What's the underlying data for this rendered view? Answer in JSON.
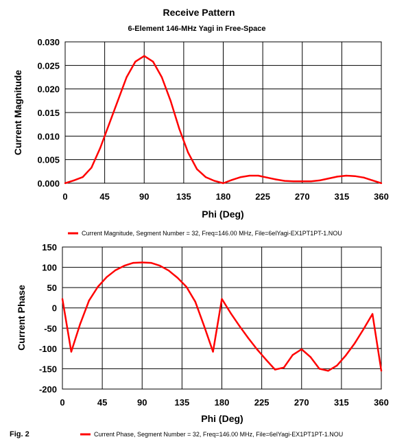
{
  "title": "Receive Pattern",
  "subtitle": "6-Element 146-MHz Yagi in Free-Space",
  "figure_label": "Fig. 2",
  "colors": {
    "series": "#ff0000",
    "grid": "#000000",
    "background": "#ffffff"
  },
  "chart_data": [
    {
      "type": "line",
      "ylabel": "Current Magnitude",
      "xlabel": "Phi (Deg)",
      "xlim": [
        0,
        360
      ],
      "ylim": [
        0,
        0.03
      ],
      "x_ticks": [
        "0",
        "45",
        "90",
        "135",
        "180",
        "225",
        "270",
        "315",
        "360"
      ],
      "y_ticks": [
        "0.000",
        "0.005",
        "0.010",
        "0.015",
        "0.020",
        "0.025",
        "0.030"
      ],
      "grid": true,
      "legend_position": "bottom",
      "series": [
        {
          "name": "Current Magnitude, Segment Number = 32, Freq=146.00 MHz, File=6elYagi-EX1PT1PT-1.NOU",
          "x": [
            0,
            10,
            20,
            30,
            40,
            50,
            60,
            70,
            80,
            90,
            100,
            110,
            120,
            130,
            140,
            150,
            160,
            170,
            180,
            190,
            200,
            210,
            220,
            230,
            240,
            250,
            260,
            270,
            280,
            290,
            300,
            310,
            320,
            330,
            340,
            350,
            360
          ],
          "values": [
            0.0,
            0.0006,
            0.0013,
            0.0033,
            0.0075,
            0.0125,
            0.0175,
            0.0225,
            0.0258,
            0.027,
            0.0258,
            0.0225,
            0.0175,
            0.0115,
            0.0065,
            0.003,
            0.0013,
            0.0005,
            0.0,
            0.0007,
            0.0013,
            0.0016,
            0.0016,
            0.0012,
            0.0008,
            0.0005,
            0.0004,
            0.0004,
            0.0004,
            0.0006,
            0.001,
            0.0014,
            0.0016,
            0.0015,
            0.0012,
            0.0006,
            0.0
          ]
        }
      ]
    },
    {
      "type": "line",
      "ylabel": "Current  Phase",
      "xlabel": "Phi (Deg)",
      "xlim": [
        0,
        360
      ],
      "ylim": [
        -200,
        150
      ],
      "x_ticks": [
        "0",
        "45",
        "90",
        "135",
        "180",
        "225",
        "270",
        "315",
        "360"
      ],
      "y_ticks": [
        "150",
        "100",
        "50",
        "0",
        "-50",
        "-100",
        "-150",
        "-200"
      ],
      "grid": true,
      "legend_position": "bottom",
      "series": [
        {
          "name": "Current Phase, Segment Number = 32, Freq=146.00 MHz, File=6elYagi-EX1PT1PT-1.NOU",
          "x": [
            0,
            10,
            20,
            30,
            40,
            50,
            60,
            70,
            80,
            90,
            100,
            110,
            120,
            130,
            140,
            150,
            160,
            170,
            180,
            190,
            200,
            210,
            220,
            230,
            240,
            250,
            260,
            270,
            280,
            290,
            300,
            310,
            320,
            330,
            340,
            350,
            360
          ],
          "values": [
            22,
            -108,
            -40,
            18,
            52,
            76,
            93,
            104,
            111,
            112,
            111,
            104,
            92,
            74,
            52,
            15,
            -45,
            -108,
            22,
            -13,
            -45,
            -75,
            -103,
            -128,
            -152,
            -147,
            -116,
            -102,
            -121,
            -150,
            -155,
            -142,
            -117,
            -87,
            -52,
            -15,
            -155
          ]
        }
      ]
    }
  ]
}
